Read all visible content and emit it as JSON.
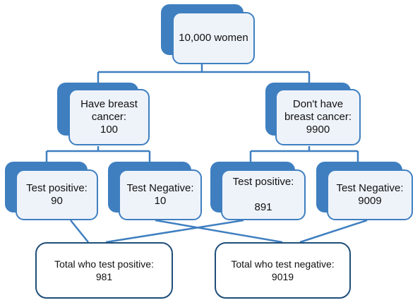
{
  "root": {
    "label": "10,000 women"
  },
  "level1": {
    "left": {
      "label": "Have breast\ncancer:\n100"
    },
    "right": {
      "label": "Don't have\nbreast cancer:\n9900"
    }
  },
  "level2": {
    "a": {
      "label": "Test positive:\n90"
    },
    "b": {
      "label": "Test Negative:\n10"
    },
    "c": {
      "label": "Test positive:\n\n891"
    },
    "d": {
      "label": "Test Negative:\n9009"
    }
  },
  "totals": {
    "positive": {
      "label": "Total who test positive:\n981"
    },
    "negative": {
      "label": "Total who test negative:\n9019"
    }
  },
  "colors": {
    "accent": "#3f7fc0",
    "fill": "#eef3fa",
    "line": "#3f7fc0",
    "total_border": "#1f4e79"
  }
}
